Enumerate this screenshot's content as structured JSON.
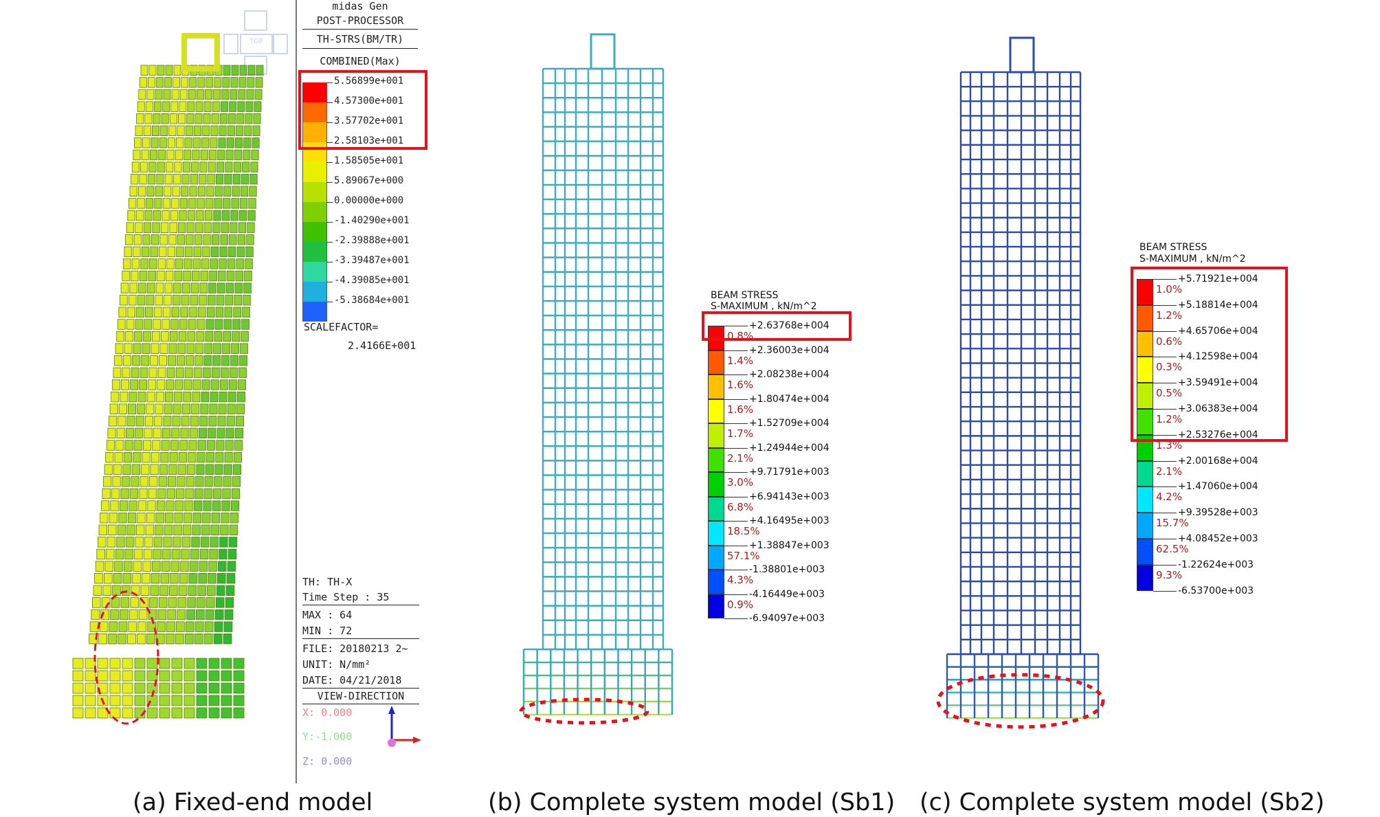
{
  "panels": {
    "a": {
      "caption": "(a) Fixed-end model",
      "app_title": "midas Gen",
      "app_subtitle": "POST-PROCESSOR",
      "mode": "TH-STRS(BM/TR)",
      "component": "COMBINED(Max)",
      "legend_values": [
        "5.56899e+001",
        "4.57300e+001",
        "3.57702e+001",
        "2.58103e+001",
        "1.58505e+001",
        "5.89067e+000",
        "0.00000e+000",
        "-1.40290e+001",
        "-2.39888e+001",
        "-3.39487e+001",
        "-4.39085e+001",
        "-5.38684e+001"
      ],
      "legend_colors": [
        "#ff0000",
        "#ff6a00",
        "#ffb000",
        "#ffe000",
        "#e8f000",
        "#b8e000",
        "#7fd000",
        "#3fc000",
        "#20c040",
        "#30d8a0",
        "#20b0e0",
        "#2060ff"
      ],
      "scalefactor_label": "SCALEFACTOR=",
      "scalefactor_value": "2.4166E+001",
      "info": {
        "th": "TH: TH-X",
        "time_step": "Time Step : 35",
        "max": "MAX : 64",
        "min": "MIN : 72",
        "file": "FILE: 20180213 2~",
        "unit": "UNIT: N/mm²",
        "date": "DATE: 04/21/2018"
      },
      "view_direction_label": "VIEW-DIRECTION",
      "view_x": "X: 0.000",
      "view_y": "Y:-1.000",
      "view_z": "Z: 0.000",
      "view_cube_top": "TOP"
    },
    "b": {
      "caption": "(b) Complete system model (Sb1)",
      "legend_title": "BEAM STRESS",
      "legend_subtitle": "S-MAXIMUM , kN/m^2",
      "values": [
        "+2.63768e+004",
        "+2.36003e+004",
        "+2.08238e+004",
        "+1.80474e+004",
        "+1.52709e+004",
        "+1.24944e+004",
        "+9.71791e+003",
        "+6.94143e+003",
        "+4.16495e+003",
        "+1.38847e+003",
        "-1.38801e+003",
        "-4.16449e+003",
        "-6.94097e+003"
      ],
      "percents": [
        "0.8%",
        "1.4%",
        "1.6%",
        "1.6%",
        "1.7%",
        "2.1%",
        "3.0%",
        "6.8%",
        "18.5%",
        "57.1%",
        "4.3%",
        "0.9%"
      ],
      "colors": [
        "#ff0000",
        "#ff5a00",
        "#ffc000",
        "#ffff00",
        "#c0f000",
        "#40e000",
        "#00d000",
        "#00d890",
        "#00e8ff",
        "#00a8ff",
        "#0050ff",
        "#0000e0"
      ]
    },
    "c": {
      "caption": "(c) Complete system model (Sb2)",
      "legend_title": "BEAM STRESS",
      "legend_subtitle": "S-MAXIMUM , kN/m^2",
      "values": [
        "+5.71921e+004",
        "+5.18814e+004",
        "+4.65706e+004",
        "+4.12598e+004",
        "+3.59491e+004",
        "+3.06383e+004",
        "+2.53276e+004",
        "+2.00168e+004",
        "+1.47060e+004",
        "+9.39528e+003",
        "+4.08452e+003",
        "-1.22624e+003",
        "-6.53700e+003"
      ],
      "percents": [
        "1.0%",
        "1.2%",
        "0.6%",
        "0.3%",
        "0.5%",
        "1.2%",
        "1.3%",
        "2.1%",
        "4.2%",
        "15.7%",
        "62.5%",
        "9.3%"
      ],
      "colors": [
        "#ff0000",
        "#ff5a00",
        "#ffc000",
        "#ffff00",
        "#c0f000",
        "#40e000",
        "#00d000",
        "#00d890",
        "#00e8ff",
        "#00a8ff",
        "#0050ff",
        "#0000e0"
      ]
    }
  }
}
